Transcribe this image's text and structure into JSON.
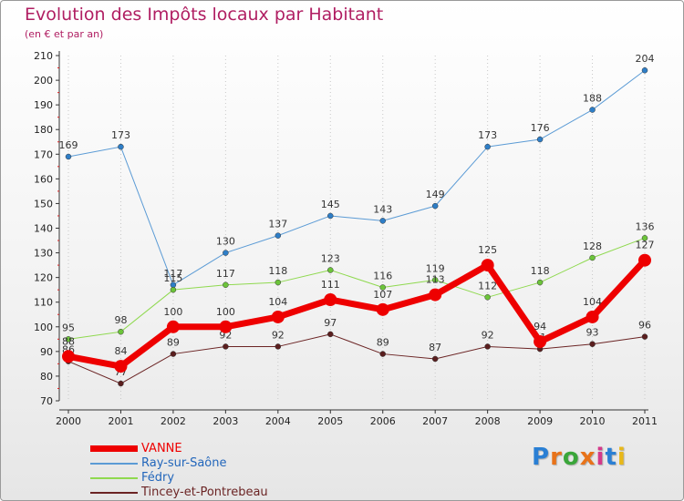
{
  "title": "Evolution des Impôts locaux par Habitant",
  "subtitle": "(en € et par an)",
  "brand": {
    "letters": [
      "P",
      "r",
      "o",
      "x",
      "i",
      "t",
      "i"
    ],
    "colors": [
      "#2a7fd4",
      "#e8731a",
      "#3aa63a",
      "#e8731a",
      "#d43a8a",
      "#2a7fd4",
      "#e8b81a"
    ]
  },
  "chart_data": {
    "type": "line",
    "title": "Evolution des Impôts locaux par Habitant",
    "subtitle": "(en € et par an)",
    "xlabel": "",
    "ylabel": "",
    "ylim": [
      70,
      210
    ],
    "yticks": [
      70,
      80,
      90,
      100,
      110,
      120,
      130,
      140,
      150,
      160,
      170,
      180,
      190,
      200,
      210
    ],
    "grid": "vertical dotted",
    "legend": "bottom-left",
    "x": [
      "2000",
      "2001",
      "2002",
      "2003",
      "2004",
      "2005",
      "2006",
      "2007",
      "2008",
      "2009",
      "2010",
      "2011"
    ],
    "series": [
      {
        "name": "Ray-sur-Saône",
        "color": "#5b9bd5",
        "width": 1,
        "marker": 6,
        "markerColor": "#2e7ec7",
        "values": [
          169,
          173,
          117,
          130,
          137,
          145,
          143,
          149,
          173,
          176,
          188,
          204
        ]
      },
      {
        "name": "Fédry",
        "color": "#8fd94f",
        "width": 1,
        "marker": 6,
        "markerColor": "#6cc43a",
        "values": [
          95,
          98,
          115,
          117,
          118,
          123,
          116,
          119,
          112,
          118,
          128,
          136
        ]
      },
      {
        "name": "Tincey-et-Pontrebeau",
        "color": "#6b2424",
        "width": 1,
        "marker": 6,
        "markerColor": "#5a1e1e",
        "values": [
          86,
          77,
          89,
          92,
          92,
          97,
          89,
          87,
          92,
          91,
          93,
          96
        ]
      },
      {
        "name": "VANNE",
        "color": "#ee0000",
        "width": 7,
        "marker": 14,
        "markerColor": "#ee0000",
        "values": [
          88,
          84,
          100,
          100,
          104,
          111,
          107,
          113,
          125,
          94,
          104,
          127
        ]
      }
    ],
    "legend_order": [
      "VANNE",
      "Ray-sur-Saône",
      "Fédry",
      "Tincey-et-Pontrebeau"
    ]
  }
}
